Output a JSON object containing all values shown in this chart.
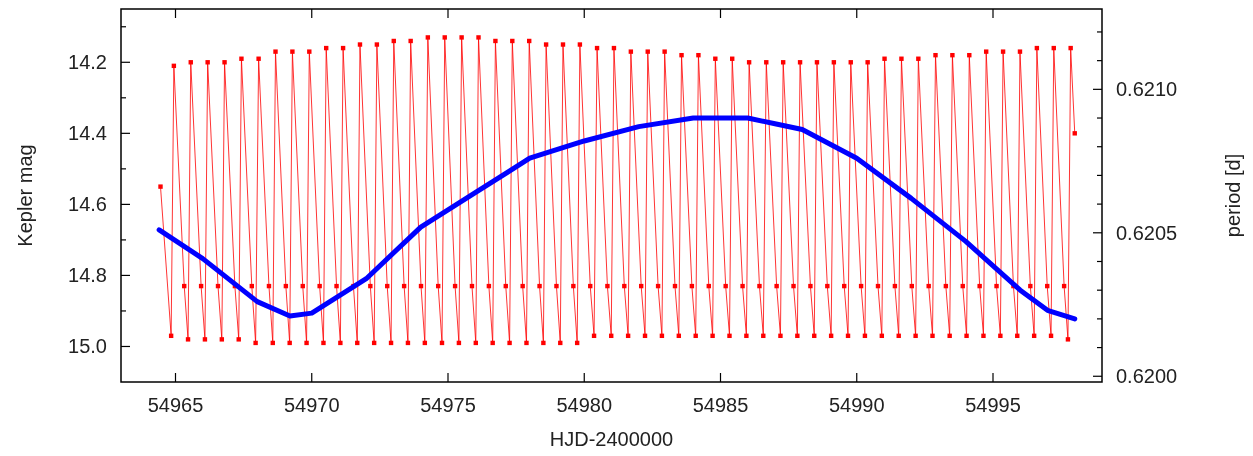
{
  "chart_data": {
    "type": "line",
    "xlabel": "HJD-2400000",
    "ylabel": "Kepler mag",
    "y2label": "period [d]",
    "xlim": [
      54963,
      54999
    ],
    "xticks": [
      54965,
      54970,
      54975,
      54980,
      54985,
      54990,
      54995
    ],
    "ylim": [
      15.1,
      14.05
    ],
    "yticks": [
      {
        "value": 14.1,
        "label": null
      },
      14.2,
      {
        "value": 14.3,
        "label": null
      },
      14.4,
      {
        "value": 14.5,
        "label": null
      },
      14.6,
      {
        "value": 14.7,
        "label": null
      },
      14.8,
      {
        "value": 14.9,
        "label": null
      },
      {
        "value": 15.0,
        "label": "15.0"
      }
    ],
    "y2lim": [
      0.61998,
      0.62128
    ],
    "y2ticks": [
      {
        "value": 0.62,
        "label": "0.6200"
      },
      {
        "value": 0.6201,
        "label": null
      },
      {
        "value": 0.6202,
        "label": null
      },
      {
        "value": 0.6203,
        "label": null
      },
      {
        "value": 0.6204,
        "label": null
      },
      {
        "value": 0.6205,
        "label": "0.6205"
      },
      {
        "value": 0.6206,
        "label": null
      },
      {
        "value": 0.6207,
        "label": null
      },
      {
        "value": 0.6208,
        "label": null
      },
      {
        "value": 0.6209,
        "label": null
      },
      {
        "value": 0.621,
        "label": "0.6210"
      },
      {
        "value": 0.6211,
        "label": null
      },
      {
        "value": 0.6212,
        "label": null
      }
    ],
    "grid": false,
    "series": [
      {
        "color": "#ff0000",
        "marker": "square",
        "x": [
          54964.45,
          54964.84,
          54964.94,
          54965.32,
          54965.46,
          54965.56,
          54965.94,
          54966.08,
          54966.18,
          54966.56,
          54966.7,
          54966.8,
          54967.18,
          54967.32,
          54967.42,
          54967.8,
          54967.94,
          54968.05,
          54968.43,
          54968.57,
          54968.67,
          54969.05,
          54969.19,
          54969.29,
          54969.67,
          54969.81,
          54969.91,
          54970.29,
          54970.43,
          54970.53,
          54970.91,
          54971.05,
          54971.15,
          54971.53,
          54971.67,
          54971.77,
          54972.15,
          54972.29,
          54972.39,
          54972.77,
          54972.91,
          54973.01,
          54973.39,
          54973.53,
          54973.63,
          54974.01,
          54974.15,
          54974.26,
          54974.64,
          54974.78,
          54974.88,
          54975.26,
          54975.4,
          54975.5,
          54975.88,
          54976.02,
          54976.12,
          54976.5,
          54976.64,
          54976.74,
          54977.12,
          54977.26,
          54977.36,
          54977.74,
          54977.88,
          54977.98,
          54978.36,
          54978.5,
          54978.6,
          54978.98,
          54979.12,
          54979.22,
          54979.6,
          54979.74,
          54979.84,
          54980.22,
          54980.36,
          54980.47,
          54980.85,
          54980.99,
          54981.09,
          54981.47,
          54981.61,
          54981.71,
          54982.09,
          54982.23,
          54982.33,
          54982.71,
          54982.85,
          54982.95,
          54983.33,
          54983.47,
          54983.57,
          54983.95,
          54984.09,
          54984.19,
          54984.57,
          54984.71,
          54984.81,
          54985.19,
          54985.33,
          54985.43,
          54985.81,
          54985.95,
          54986.05,
          54986.43,
          54986.57,
          54986.68,
          54987.06,
          54987.2,
          54987.3,
          54987.68,
          54987.82,
          54987.92,
          54988.3,
          54988.44,
          54988.54,
          54988.92,
          54989.06,
          54989.16,
          54989.54,
          54989.68,
          54989.78,
          54990.16,
          54990.3,
          54990.4,
          54990.78,
          54990.92,
          54991.02,
          54991.4,
          54991.54,
          54991.64,
          54992.02,
          54992.16,
          54992.26,
          54992.64,
          54992.78,
          54992.89,
          54993.27,
          54993.41,
          54993.51,
          54993.89,
          54994.03,
          54994.13,
          54994.51,
          54994.65,
          54994.75,
          54995.13,
          54995.27,
          54995.37,
          54995.75,
          54995.89,
          54995.99,
          54996.37,
          54996.51,
          54996.61,
          54996.99,
          54997.13,
          54997.23,
          54997.61,
          54997.75,
          54997.85,
          54998.0
        ],
        "values": [
          14.55,
          14.97,
          14.21,
          14.83,
          14.98,
          14.2,
          14.83,
          14.98,
          14.2,
          14.83,
          14.98,
          14.2,
          14.83,
          14.98,
          14.19,
          14.83,
          14.99,
          14.19,
          14.83,
          14.99,
          14.17,
          14.83,
          14.99,
          14.17,
          14.83,
          14.99,
          14.17,
          14.83,
          14.99,
          14.16,
          14.83,
          14.99,
          14.16,
          14.83,
          14.99,
          14.15,
          14.83,
          14.99,
          14.15,
          14.83,
          14.99,
          14.14,
          14.83,
          14.99,
          14.14,
          14.83,
          14.99,
          14.13,
          14.83,
          14.99,
          14.13,
          14.83,
          14.99,
          14.13,
          14.83,
          14.99,
          14.13,
          14.83,
          14.99,
          14.14,
          14.83,
          14.99,
          14.14,
          14.83,
          14.99,
          14.14,
          14.83,
          14.99,
          14.15,
          14.83,
          14.99,
          14.15,
          14.83,
          14.99,
          14.15,
          14.83,
          14.97,
          14.16,
          14.83,
          14.97,
          14.16,
          14.83,
          14.97,
          14.17,
          14.83,
          14.97,
          14.17,
          14.83,
          14.97,
          14.17,
          14.83,
          14.97,
          14.18,
          14.83,
          14.97,
          14.18,
          14.83,
          14.97,
          14.19,
          14.83,
          14.97,
          14.19,
          14.83,
          14.97,
          14.2,
          14.83,
          14.97,
          14.2,
          14.83,
          14.97,
          14.2,
          14.83,
          14.97,
          14.2,
          14.83,
          14.97,
          14.2,
          14.83,
          14.97,
          14.2,
          14.83,
          14.97,
          14.2,
          14.83,
          14.97,
          14.2,
          14.83,
          14.97,
          14.19,
          14.83,
          14.97,
          14.19,
          14.83,
          14.97,
          14.19,
          14.83,
          14.97,
          14.18,
          14.83,
          14.97,
          14.18,
          14.83,
          14.97,
          14.18,
          14.83,
          14.97,
          14.17,
          14.83,
          14.97,
          14.17,
          14.83,
          14.97,
          14.17,
          14.83,
          14.97,
          14.16,
          14.83,
          14.97,
          14.16,
          14.83,
          14.98,
          14.16,
          14.4
        ]
      },
      {
        "color": "#0000ff",
        "marker": "none",
        "axis": "y2",
        "x": [
          54964.4,
          54966,
          54968,
          54969.2,
          54970,
          54972,
          54974,
          54976,
          54978,
          54980,
          54982,
          54984,
          54986,
          54987,
          54988,
          54990,
          54992,
          54994,
          54996,
          54997,
          54998
        ],
        "values": [
          0.62051,
          0.62041,
          0.62026,
          0.62021,
          0.62022,
          0.62034,
          0.62052,
          0.62064,
          0.62076,
          0.62082,
          0.62087,
          0.6209,
          0.6209,
          0.62088,
          0.62086,
          0.62076,
          0.62062,
          0.62047,
          0.6203,
          0.62023,
          0.6202
        ]
      }
    ]
  }
}
